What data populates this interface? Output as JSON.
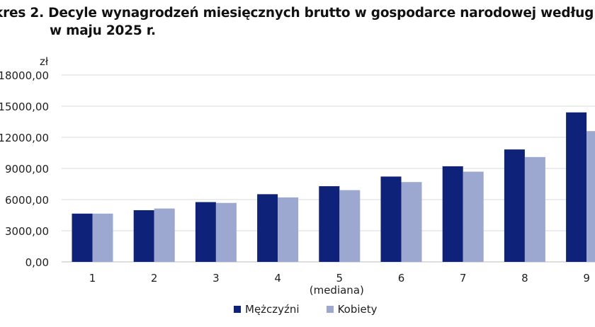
{
  "title": {
    "line1": "kres 2. Decyle wynagrodzeń miesięcznych brutto w gospodarce narodowej według",
    "line2": "w maju 2025 r."
  },
  "chart_data": {
    "type": "bar",
    "title": "kres 2. Decyle wynagrodzeń miesięcznych brutto w gospodarce narodowej według w maju 2025 r.",
    "ylabel": "zł",
    "xlabel": "",
    "ylim": [
      0,
      18000
    ],
    "yticks": [
      0,
      3000,
      6000,
      9000,
      12000,
      15000,
      18000
    ],
    "ytick_labels": [
      "0,00",
      "3000,00",
      "6000,00",
      "9000,00",
      "12000,00",
      "15000,00",
      "18000,00"
    ],
    "categories": [
      "1",
      "2",
      "3",
      "4",
      "5",
      "6",
      "7",
      "8",
      "9"
    ],
    "category_annotations": {
      "5": "(mediana)"
    },
    "grid": true,
    "legend_position": "bottom",
    "series": [
      {
        "name": "Mężczyźni",
        "color": "#0d2278",
        "values": [
          4650,
          4980,
          5760,
          6520,
          7290,
          8220,
          9210,
          10830,
          14400
        ]
      },
      {
        "name": "Kobiety",
        "color": "#9ca8cf",
        "values": [
          4650,
          5140,
          5680,
          6210,
          6910,
          7690,
          8690,
          10100,
          12600
        ]
      }
    ]
  }
}
